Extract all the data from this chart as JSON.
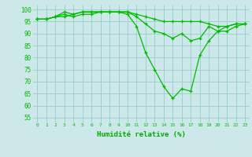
{
  "x": [
    0,
    1,
    2,
    3,
    4,
    5,
    6,
    7,
    8,
    9,
    10,
    11,
    12,
    13,
    14,
    15,
    16,
    17,
    18,
    19,
    20,
    21,
    22,
    23
  ],
  "series": [
    [
      96,
      96,
      97,
      97,
      98,
      99,
      99,
      99,
      99,
      99,
      98,
      93,
      82,
      75,
      68,
      63,
      67,
      66,
      81,
      87,
      91,
      91,
      93,
      94
    ],
    [
      96,
      96,
      97,
      99,
      98,
      99,
      99,
      99,
      99,
      99,
      99,
      97,
      94,
      91,
      90,
      88,
      90,
      87,
      88,
      93,
      91,
      93,
      94,
      94
    ],
    [
      96,
      96,
      97,
      98,
      97,
      98,
      98,
      99,
      99,
      99,
      99,
      98,
      97,
      96,
      95,
      95,
      95,
      95,
      95,
      94,
      93,
      93,
      94,
      94
    ]
  ],
  "line_color": "#00bb00",
  "marker": "+",
  "bg_color": "#cce8e8",
  "grid_color": "#99cccc",
  "xlabel": "Humidité relative (%)",
  "xlabel_color": "#00aa00",
  "ylabel_ticks": [
    55,
    60,
    65,
    70,
    75,
    80,
    85,
    90,
    95,
    100
  ],
  "ylim": [
    53,
    102
  ],
  "xlim": [
    -0.5,
    23.5
  ]
}
